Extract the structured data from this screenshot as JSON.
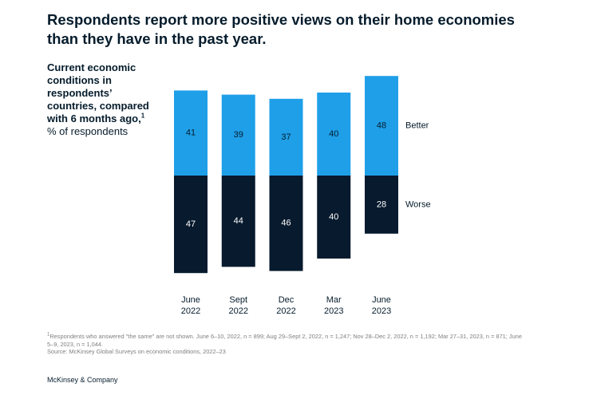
{
  "title": "Respondents report more positive views on their home economies than they have in the past year.",
  "subtitle": "Current economic conditions in respondents’ countries, compared with 6 months ago,",
  "subtitle_sup": "1",
  "unit": "% of respondents",
  "footnote_marker": "1",
  "footnote": "Respondents who answered \"the same\" are not shown. June 6–10, 2022, n = 899; Aug 29–Sept 2, 2022, n = 1,247; Nov 28–Dec 2, 2022, n = 1,192; Mar 27–31, 2023, n = 871; June 5–9, 2023, n = 1,044.",
  "source": "Source: McKinsey Global Surveys on economic conditions, 2022–23",
  "brand": "McKinsey & Company",
  "chart_data": {
    "type": "bar",
    "stacked": "diverging",
    "categories": [
      [
        "June",
        "2022"
      ],
      [
        "Sept",
        "2022"
      ],
      [
        "Dec",
        "2022"
      ],
      [
        "Mar",
        "2023"
      ],
      [
        "June",
        "2023"
      ]
    ],
    "series": [
      {
        "name": "Better",
        "values": [
          41,
          39,
          37,
          40,
          48
        ],
        "color": "#1f9fe8"
      },
      {
        "name": "Worse",
        "values": [
          47,
          44,
          46,
          40,
          28
        ],
        "color": "#071a2e"
      }
    ],
    "legend": "right, inline labels",
    "grid": false
  }
}
